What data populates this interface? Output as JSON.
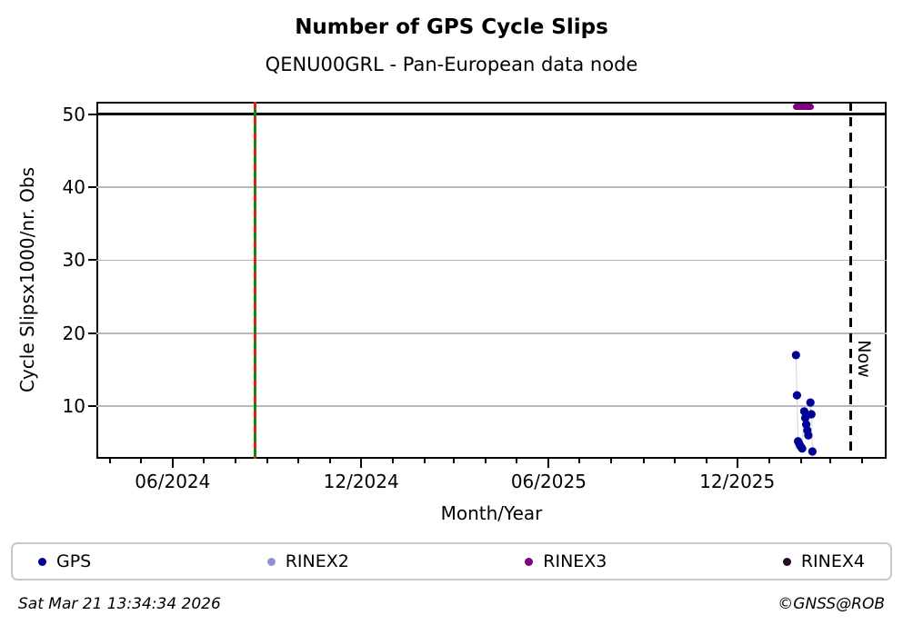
{
  "chart_data": {
    "type": "scatter",
    "title": "Number of GPS Cycle Slips",
    "subtitle": "QENU00GRL - Pan-European data node",
    "xlabel": "Month/Year",
    "ylabel": "Cycle Slipsx1000/nr. Obs",
    "grid": "horizontal-only",
    "x_axis": {
      "range": [
        "2024-03-19",
        "2026-04-25"
      ],
      "minor_tick_interval": "1 month",
      "major_ticks": [
        {
          "date": "2024-06-01",
          "label": "06/2024"
        },
        {
          "date": "2024-12-01",
          "label": "12/2024"
        },
        {
          "date": "2025-06-01",
          "label": "06/2025"
        },
        {
          "date": "2025-12-01",
          "label": "12/2025"
        }
      ]
    },
    "y_axis": {
      "range": [
        2.8,
        51.7
      ],
      "ticks": [
        10,
        20,
        30,
        40,
        50
      ]
    },
    "threshold_line": {
      "value": 50,
      "color": "#000000"
    },
    "event_line": {
      "date": "2024-08-20",
      "style": "green-with-red-dashes",
      "color_green": "#0f8a0f",
      "color_red": "#dd2222"
    },
    "now_line": {
      "date": "2026-03-21",
      "label": "Now",
      "color": "#000000"
    },
    "series": [
      {
        "name": "GPS",
        "color": "#000096",
        "connector_color": "#d8d8e8",
        "points": [
          {
            "date": "2026-01-27",
            "value": 17.0
          },
          {
            "date": "2026-01-28",
            "value": 11.5
          },
          {
            "date": "2026-01-29",
            "value": 5.2
          },
          {
            "date": "2026-01-30",
            "value": 4.9
          },
          {
            "date": "2026-01-31",
            "value": 4.6
          },
          {
            "date": "2026-02-01",
            "value": 4.4
          },
          {
            "date": "2026-02-02",
            "value": 4.2
          },
          {
            "date": "2026-02-04",
            "value": 9.3
          },
          {
            "date": "2026-02-05",
            "value": 8.4
          },
          {
            "date": "2026-02-06",
            "value": 7.5
          },
          {
            "date": "2026-02-07",
            "value": 6.7
          },
          {
            "date": "2026-02-08",
            "value": 6.0
          },
          {
            "date": "2026-02-10",
            "value": 10.5
          },
          {
            "date": "2026-02-11",
            "value": 8.9
          },
          {
            "date": "2026-02-12",
            "value": 3.8
          }
        ]
      },
      {
        "name": "RINEX2",
        "color": "#9292ce",
        "points": []
      },
      {
        "name": "RINEX3",
        "color": "#800080",
        "segment": {
          "start": "2026-01-24",
          "end": "2026-02-13",
          "value": 51
        }
      },
      {
        "name": "RINEX4",
        "color": "#260a28",
        "points": []
      }
    ],
    "legend": [
      {
        "label": "GPS",
        "color": "#000096"
      },
      {
        "label": "RINEX2",
        "color": "#9292ce"
      },
      {
        "label": "RINEX3",
        "color": "#800080"
      },
      {
        "label": "RINEX4",
        "color": "#260a28"
      }
    ]
  },
  "footer": {
    "timestamp": "Sat Mar 21 13:34:34 2026",
    "credit": "©GNSS@ROB"
  }
}
